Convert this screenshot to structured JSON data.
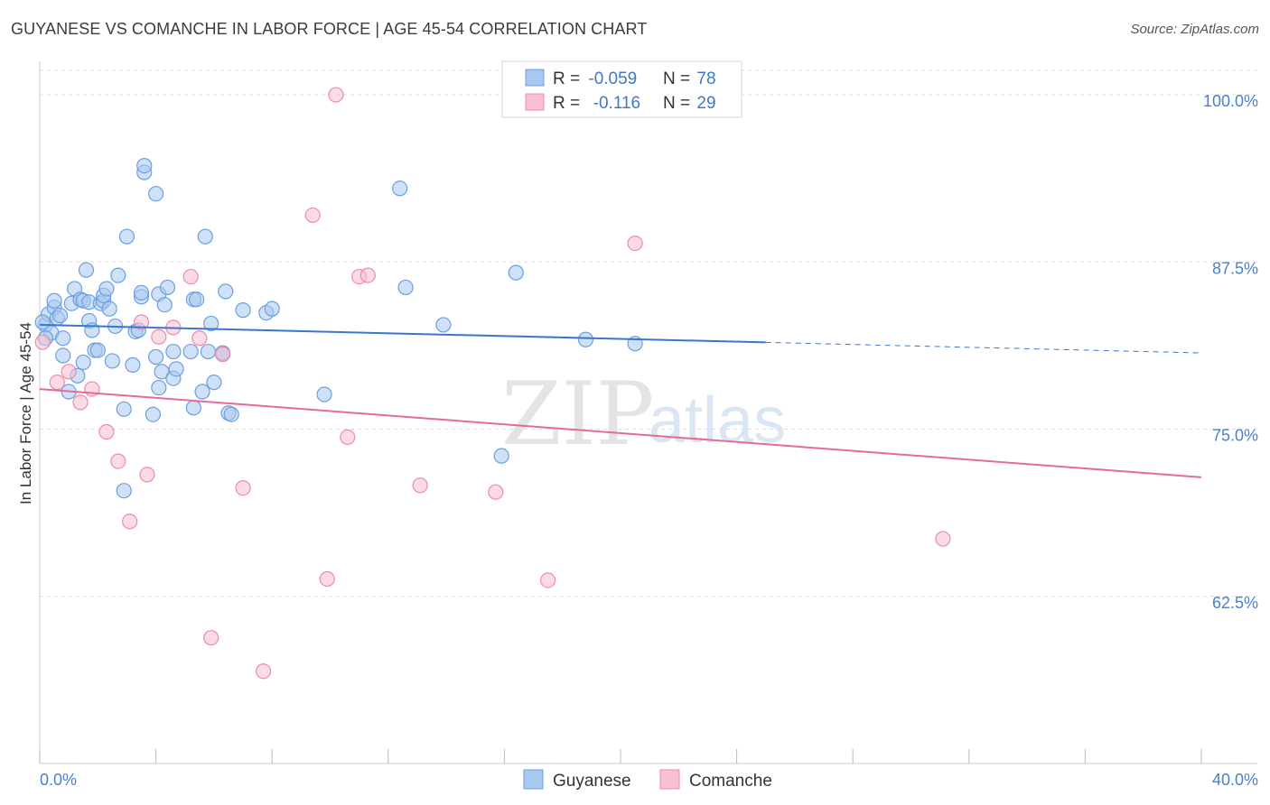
{
  "chart_data": {
    "type": "scatter",
    "title": "GUYANESE VS COMANCHE IN LABOR FORCE | AGE 45-54 CORRELATION CHART",
    "source": "Source: ZipAtlas.com",
    "xlabel": "",
    "ylabel": "In Labor Force | Age 45-54",
    "xlim": [
      0,
      40
    ],
    "ylim": [
      50,
      102.5
    ],
    "x_tick_labels": [
      {
        "value": 0,
        "label": "0.0%"
      },
      {
        "value": 40,
        "label": "40.0%"
      }
    ],
    "x_minor_ticks": [
      0,
      4,
      8,
      12,
      16,
      20,
      24,
      28,
      32,
      36,
      40
    ],
    "y_tick_labels": [
      {
        "value": 100,
        "label": "100.0%"
      },
      {
        "value": 87.5,
        "label": "87.5%"
      },
      {
        "value": 75,
        "label": "75.0%"
      },
      {
        "value": 62.5,
        "label": "62.5%"
      }
    ],
    "grid": true,
    "legend": {
      "position": "top-center",
      "entries": [
        {
          "r_label": "R = ",
          "r_value": "-0.059",
          "n_label": "N = ",
          "n_value": "78"
        },
        {
          "r_label": "R = ",
          "r_value": " -0.116",
          "n_label": "N = ",
          "n_value": "29"
        }
      ]
    },
    "watermark": {
      "zip": "ZIP",
      "atlas": "atlas"
    },
    "colors": {
      "guyanese_fill": "#a8c8f0",
      "guyanese_stroke": "#6e9ee0",
      "guyanese_line": "#3a76d0",
      "comanche_fill": "#f8c0d2",
      "comanche_stroke": "#ee8aab",
      "comanche_line": "#e46a98",
      "grid": "#dddddd",
      "tick_text": "#4a7fd0"
    },
    "series": [
      {
        "name": "Guyanese",
        "trend": {
          "x_start": 0,
          "y_start": 82.8,
          "x_solid_end": 25,
          "x_end": 40,
          "y_end": 80.7
        },
        "points": [
          [
            0.2,
            82.8
          ],
          [
            0.3,
            83.6
          ],
          [
            0.4,
            82.2
          ],
          [
            0.5,
            84.1
          ],
          [
            0.5,
            84.6
          ],
          [
            0.6,
            83.3
          ],
          [
            0.7,
            83.5
          ],
          [
            0.8,
            80.5
          ],
          [
            0.8,
            81.8
          ],
          [
            1.0,
            77.8
          ],
          [
            1.1,
            84.4
          ],
          [
            1.2,
            85.5
          ],
          [
            1.3,
            79.0
          ],
          [
            1.4,
            84.7
          ],
          [
            1.5,
            84.6
          ],
          [
            1.5,
            80.0
          ],
          [
            1.6,
            86.9
          ],
          [
            1.7,
            84.5
          ],
          [
            1.7,
            83.1
          ],
          [
            1.8,
            82.4
          ],
          [
            1.9,
            80.9
          ],
          [
            2.0,
            80.9
          ],
          [
            2.1,
            84.4
          ],
          [
            2.2,
            84.6
          ],
          [
            2.2,
            85.0
          ],
          [
            2.3,
            85.5
          ],
          [
            2.4,
            84.0
          ],
          [
            2.5,
            80.1
          ],
          [
            2.6,
            82.7
          ],
          [
            2.7,
            86.5
          ],
          [
            2.9,
            76.5
          ],
          [
            2.9,
            70.4
          ],
          [
            3.0,
            89.4
          ],
          [
            3.2,
            79.8
          ],
          [
            3.3,
            82.3
          ],
          [
            3.4,
            82.4
          ],
          [
            3.5,
            84.9
          ],
          [
            3.5,
            85.2
          ],
          [
            3.6,
            94.2
          ],
          [
            3.6,
            94.7
          ],
          [
            3.9,
            76.1
          ],
          [
            4.0,
            80.4
          ],
          [
            4.1,
            78.1
          ],
          [
            4.0,
            92.6
          ],
          [
            4.1,
            85.1
          ],
          [
            4.2,
            79.3
          ],
          [
            4.3,
            84.3
          ],
          [
            4.4,
            85.6
          ],
          [
            4.6,
            80.8
          ],
          [
            4.6,
            78.8
          ],
          [
            4.7,
            79.5
          ],
          [
            5.2,
            80.8
          ],
          [
            5.3,
            76.6
          ],
          [
            5.3,
            84.7
          ],
          [
            5.4,
            84.7
          ],
          [
            5.6,
            77.8
          ],
          [
            5.7,
            89.4
          ],
          [
            5.8,
            80.8
          ],
          [
            5.9,
            82.9
          ],
          [
            6.0,
            78.5
          ],
          [
            6.3,
            80.6
          ],
          [
            6.4,
            85.3
          ],
          [
            6.5,
            76.2
          ],
          [
            6.6,
            76.1
          ],
          [
            7.0,
            83.9
          ],
          [
            7.8,
            83.7
          ],
          [
            8.0,
            84.0
          ],
          [
            9.8,
            77.6
          ],
          [
            12.4,
            93.0
          ],
          [
            12.6,
            85.6
          ],
          [
            13.9,
            82.8
          ],
          [
            15.9,
            73.0
          ],
          [
            16.4,
            86.7
          ],
          [
            18.8,
            81.7
          ],
          [
            20.5,
            81.4
          ],
          [
            0.1,
            83.0
          ],
          [
            0.2,
            81.8
          ],
          [
            6.3,
            80.7
          ]
        ]
      },
      {
        "name": "Comanche",
        "trend": {
          "x_start": 0,
          "y_start": 78.0,
          "x_solid_end": 40,
          "x_end": 40,
          "y_end": 71.4
        },
        "points": [
          [
            0.1,
            81.5
          ],
          [
            0.6,
            78.5
          ],
          [
            1.0,
            79.3
          ],
          [
            1.4,
            77.0
          ],
          [
            1.8,
            78.0
          ],
          [
            2.3,
            74.8
          ],
          [
            2.7,
            72.6
          ],
          [
            3.1,
            68.1
          ],
          [
            3.5,
            83.0
          ],
          [
            3.7,
            71.6
          ],
          [
            4.1,
            81.9
          ],
          [
            4.6,
            82.6
          ],
          [
            5.2,
            86.4
          ],
          [
            5.5,
            81.8
          ],
          [
            5.9,
            59.4
          ],
          [
            6.3,
            80.6
          ],
          [
            7.0,
            70.6
          ],
          [
            7.7,
            56.9
          ],
          [
            9.4,
            91.0
          ],
          [
            9.9,
            63.8
          ],
          [
            10.2,
            100.0
          ],
          [
            10.6,
            74.4
          ],
          [
            11.0,
            86.4
          ],
          [
            11.3,
            86.5
          ],
          [
            13.1,
            70.8
          ],
          [
            15.7,
            70.3
          ],
          [
            17.5,
            63.7
          ],
          [
            20.5,
            88.9
          ],
          [
            31.1,
            66.8
          ]
        ]
      }
    ],
    "bottom_legend": [
      "Guyanese",
      "Comanche"
    ]
  }
}
